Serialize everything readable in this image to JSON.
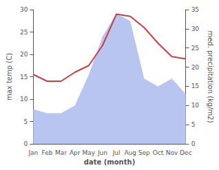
{
  "chart_data": {
    "type": "line",
    "xlabel": "date (month)",
    "ylabel": "max temp (C)",
    "y2label": "med. precipitation (kg/m2)",
    "categories": [
      "Jan",
      "Feb",
      "Mar",
      "Apr",
      "May",
      "Jun",
      "Jul",
      "Aug",
      "Sep",
      "Oct",
      "Nov",
      "Dec"
    ],
    "series": [
      {
        "type": "area",
        "axis": "y2",
        "color": "#b8c5f0",
        "values": [
          9.0,
          8.0,
          8.0,
          10.0,
          18.0,
          28.0,
          34.0,
          32.0,
          17.0,
          15.0,
          17.0,
          13.0
        ]
      },
      {
        "type": "line",
        "color": "#c94040",
        "values": [
          15.5,
          14.0,
          14.0,
          16.0,
          17.5,
          22.0,
          29.0,
          28.5,
          26.0,
          22.5,
          19.5,
          19.0
        ]
      }
    ],
    "ylim": [
      0,
      30
    ],
    "yticks": [
      0,
      5,
      10,
      15,
      20,
      25,
      30
    ],
    "y2lim": [
      0,
      35
    ],
    "y2ticks": [
      0,
      5,
      10,
      15,
      20,
      25,
      30,
      35
    ],
    "grid": false
  }
}
